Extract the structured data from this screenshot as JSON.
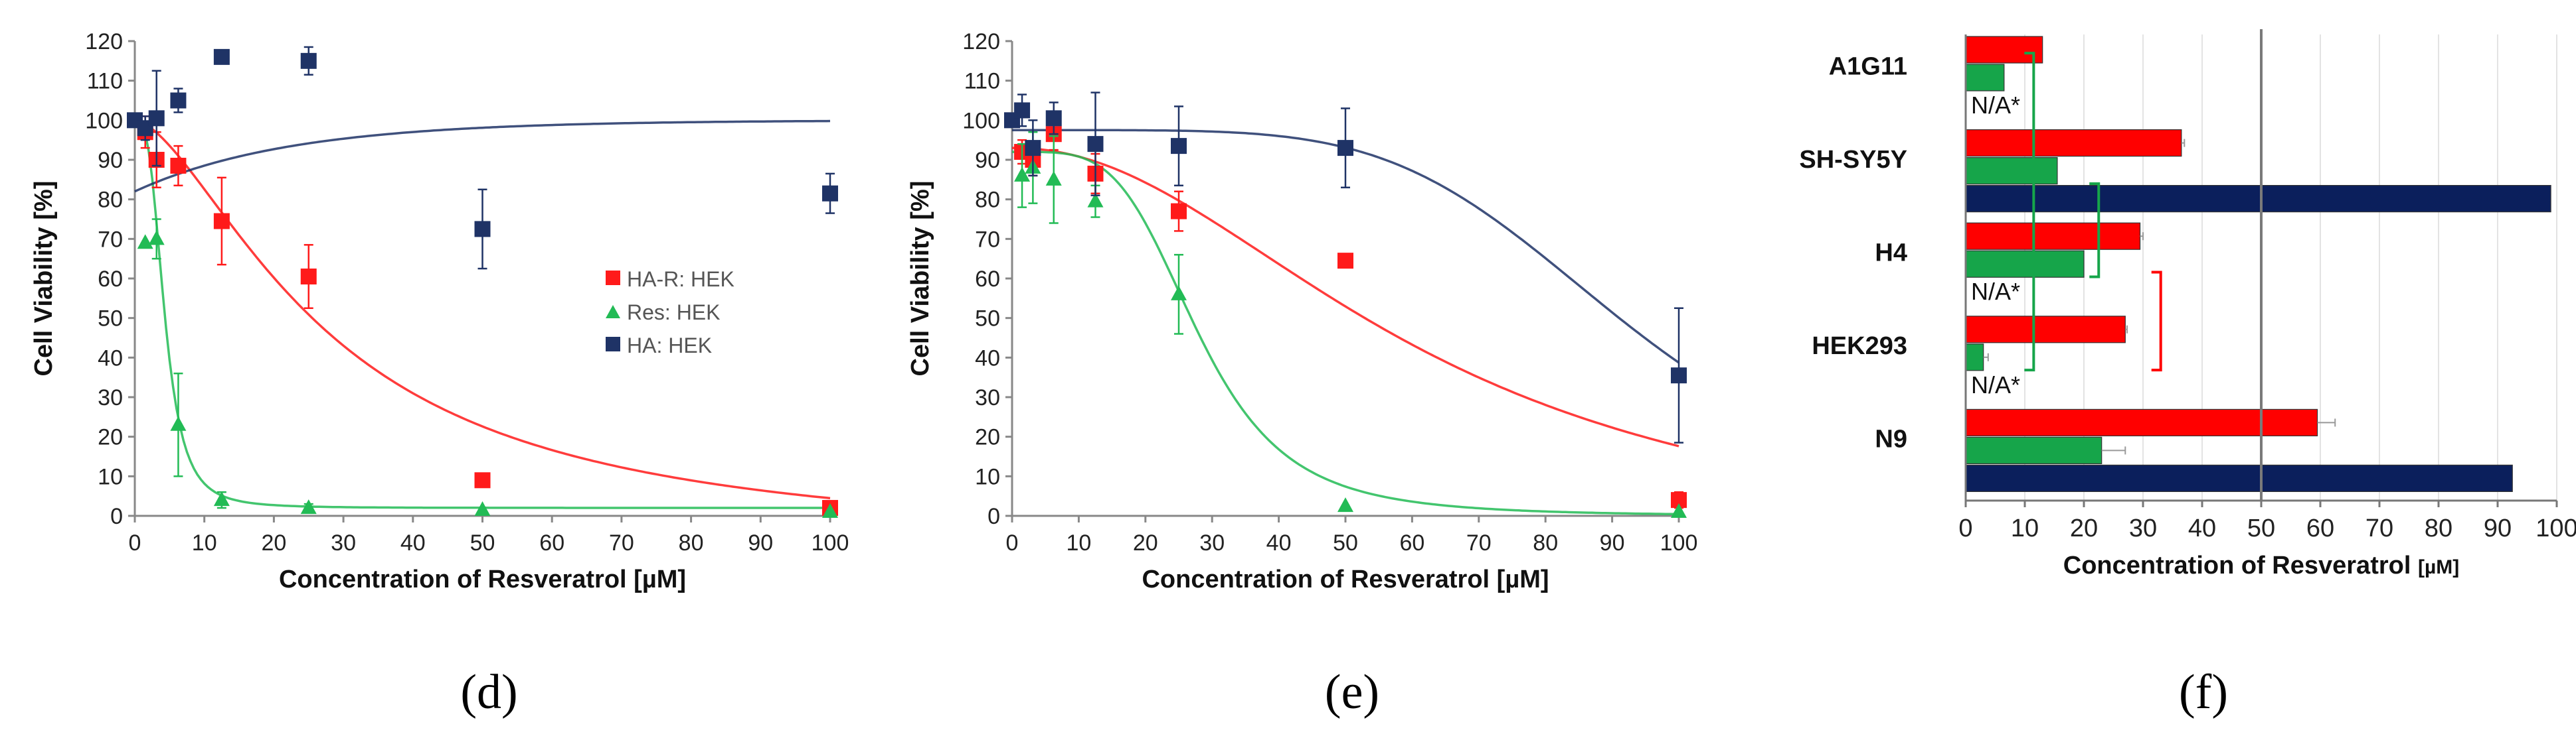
{
  "chart_data": [
    {
      "type": "scatter",
      "panel_label": "(d)",
      "xlabel": "Concentration of Resveratrol [µM]",
      "ylabel": "Cell Viability [%]",
      "xlim": [
        0,
        100
      ],
      "ylim": [
        0,
        120
      ],
      "xticks": [
        "0",
        "10",
        "20",
        "30",
        "40",
        "50",
        "60",
        "70",
        "80",
        "90",
        "100"
      ],
      "yticks": [
        "0",
        "10",
        "20",
        "30",
        "40",
        "50",
        "60",
        "70",
        "80",
        "90",
        "100",
        "110",
        "120"
      ],
      "grid": false,
      "legend": "center-right",
      "colors": {
        "ha_r": "#ff1a1a",
        "res": "#22bb55",
        "ha": "#1f3366",
        "fit_ha_r": "#ff4d4d",
        "fit_res": "#33cc66",
        "fit_ha": "#4a6aa8"
      },
      "series": [
        {
          "name": "HA-R: HEK",
          "marker": "square",
          "color": "#ff1a1a",
          "x": [
            1.5,
            3.125,
            6.25,
            12.5,
            25,
            50,
            100
          ],
          "y": [
            97,
            90,
            88.5,
            74.5,
            60.5,
            9,
            2
          ],
          "err": [
            4,
            7,
            5,
            11,
            8,
            0,
            0
          ],
          "fit": {
            "x0": 0,
            "y0": 100,
            "ec50": 28,
            "hill": 1.6,
            "bottom": -8
          }
        },
        {
          "name": "Res: HEK",
          "marker": "triangle",
          "color": "#22bb55",
          "x": [
            1.5,
            3.125,
            6.25,
            12.5,
            25,
            50,
            100
          ],
          "y": [
            69,
            70,
            23,
            4,
            2,
            1.5,
            1
          ],
          "err": [
            0,
            5,
            13,
            2,
            1,
            0,
            0
          ],
          "fit": {
            "ec50": 4.3,
            "hill": 3.2,
            "bottom": 2,
            "top": 100
          }
        },
        {
          "name": "HA: HEK",
          "marker": "square",
          "color": "#1f3366",
          "x": [
            0,
            1.5,
            3.125,
            6.25,
            12.5,
            25,
            50,
            100
          ],
          "y": [
            100,
            98,
            100.5,
            105,
            116,
            115,
            72.5,
            81.5
          ],
          "err": [
            0,
            3,
            12,
            3,
            0,
            3.5,
            10,
            5
          ],
          "fit": {
            "y0": 82,
            "plateau": 100,
            "k": 0.045
          }
        }
      ]
    },
    {
      "type": "scatter",
      "panel_label": "(e)",
      "xlabel": "Concentration of Resveratrol [µM]",
      "ylabel": "Cell Viability [%]",
      "xlim": [
        0,
        100
      ],
      "ylim": [
        0,
        120
      ],
      "xticks": [
        "0",
        "10",
        "20",
        "30",
        "40",
        "50",
        "60",
        "70",
        "80",
        "90",
        "100"
      ],
      "yticks": [
        "0",
        "10",
        "20",
        "30",
        "40",
        "50",
        "60",
        "70",
        "80",
        "90",
        "100",
        "110",
        "120"
      ],
      "grid": false,
      "series": [
        {
          "marker": "square",
          "color": "#ff1a1a",
          "x": [
            1.5,
            3.125,
            6.25,
            12.5,
            25,
            50,
            100
          ],
          "y": [
            92,
            90,
            96.5,
            86.5,
            77,
            64.5,
            4
          ],
          "err": [
            3,
            4,
            4,
            5,
            5,
            0,
            2
          ],
          "fit": {
            "top": 93,
            "ec50": 62,
            "hill": 2.1,
            "bottom": -10
          }
        },
        {
          "marker": "triangle",
          "color": "#22bb55",
          "x": [
            1.5,
            3.125,
            6.25,
            12.5,
            25,
            50,
            100
          ],
          "y": [
            86,
            88,
            85,
            79.5,
            56,
            2.5,
            1
          ],
          "err": [
            8,
            9,
            11,
            4,
            10,
            0,
            0
          ],
          "fit": {
            "top": 92,
            "ec50": 28,
            "hill": 4.2,
            "bottom": 0
          }
        },
        {
          "marker": "square",
          "color": "#1f3366",
          "x": [
            0,
            1.5,
            3.125,
            6.25,
            12.5,
            25,
            50,
            100
          ],
          "y": [
            100,
            102.5,
            93,
            100.5,
            94,
            93.5,
            93,
            35.5
          ],
          "err": [
            0,
            4,
            7,
            4,
            13,
            10,
            10,
            17
          ],
          "fit": {
            "top": 97.5,
            "ec50": 92,
            "hill": 5,
            "bottom": 0
          }
        }
      ]
    },
    {
      "type": "bar",
      "orientation": "horizontal",
      "panel_label": "(f)",
      "xlabel": "Concentration of Resveratrol",
      "xlabel_unit": "[µM]",
      "xlim": [
        0,
        100
      ],
      "xticks": [
        "0",
        "10",
        "20",
        "30",
        "40",
        "50",
        "60",
        "70",
        "80",
        "90",
        "100"
      ],
      "grid": true,
      "reference_line": 50,
      "categories": [
        "A1G11",
        "SH-SY5Y",
        "H4",
        "HEK293",
        "N9"
      ],
      "series": [
        {
          "color": "#ff0000",
          "values": [
            13,
            36.5,
            29.5,
            27,
            59.5
          ],
          "err": [
            0,
            0.5,
            0.5,
            0.3,
            3
          ]
        },
        {
          "color": "#16a54a",
          "values": [
            6.5,
            15.5,
            20,
            3,
            23
          ],
          "err": [
            0,
            0,
            0,
            0.8,
            4
          ]
        },
        {
          "color": "#0b1f5c",
          "values": [
            null,
            99,
            null,
            null,
            92.5
          ],
          "err": [
            0,
            0,
            0,
            0,
            0
          ]
        }
      ],
      "missing_label": "N/A*",
      "missing": [
        {
          "category": "A1G11",
          "series": 2
        },
        {
          "category": "H4",
          "series": 2
        },
        {
          "category": "HEK293",
          "series": 2
        }
      ],
      "brackets": [
        {
          "color": "#16a54a",
          "from": "A1G11",
          "to": "HEK293"
        },
        {
          "color": "#16a54a",
          "from": "SH-SY5Y",
          "to": "H4"
        },
        {
          "color": "#ff0000",
          "from": "H4",
          "to": "HEK293"
        }
      ]
    }
  ]
}
